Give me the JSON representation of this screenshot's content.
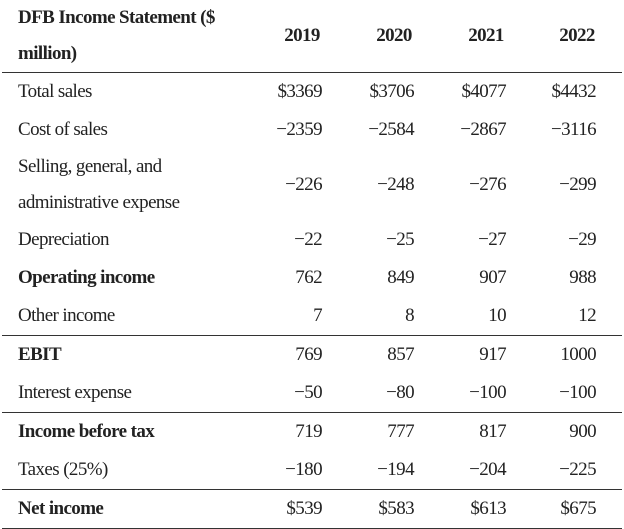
{
  "table": {
    "header": [
      "DFB Income Statement ($ million)",
      "2019",
      "2020",
      "2021",
      "2022"
    ],
    "rows": [
      {
        "label": "Total sales",
        "values": [
          "$3369",
          "$3706",
          "$4077",
          "$4432"
        ]
      },
      {
        "label": "Cost of sales",
        "values": [
          "−2359",
          "−2584",
          "−2867",
          "−3116"
        ]
      },
      {
        "label": "Selling, general, and administrative expense",
        "values": [
          "−226",
          "−248",
          "−276",
          "−299"
        ]
      },
      {
        "label": "Depreciation",
        "values": [
          "−22",
          "−25",
          "−27",
          "−29"
        ]
      },
      {
        "label": "Operating income",
        "values": [
          "762",
          "849",
          "907",
          "988"
        ],
        "bold": true
      },
      {
        "label": "Other income",
        "values": [
          "7",
          "8",
          "10",
          "12"
        ],
        "rule_below": true
      },
      {
        "label": "EBIT",
        "values": [
          "769",
          "857",
          "917",
          "1000"
        ],
        "bold": true
      },
      {
        "label": "Interest expense",
        "values": [
          "−50",
          "−80",
          "−100",
          "−100"
        ],
        "rule_below": true
      },
      {
        "label": "Income before tax",
        "values": [
          "719",
          "777",
          "817",
          "900"
        ],
        "bold": true
      },
      {
        "label": "Taxes (25%)",
        "values": [
          "−180",
          "−194",
          "−204",
          "−225"
        ],
        "rule_below": true
      },
      {
        "label": "Net income",
        "values": [
          "$539",
          "$583",
          "$613",
          "$675"
        ],
        "bold": true
      }
    ]
  }
}
